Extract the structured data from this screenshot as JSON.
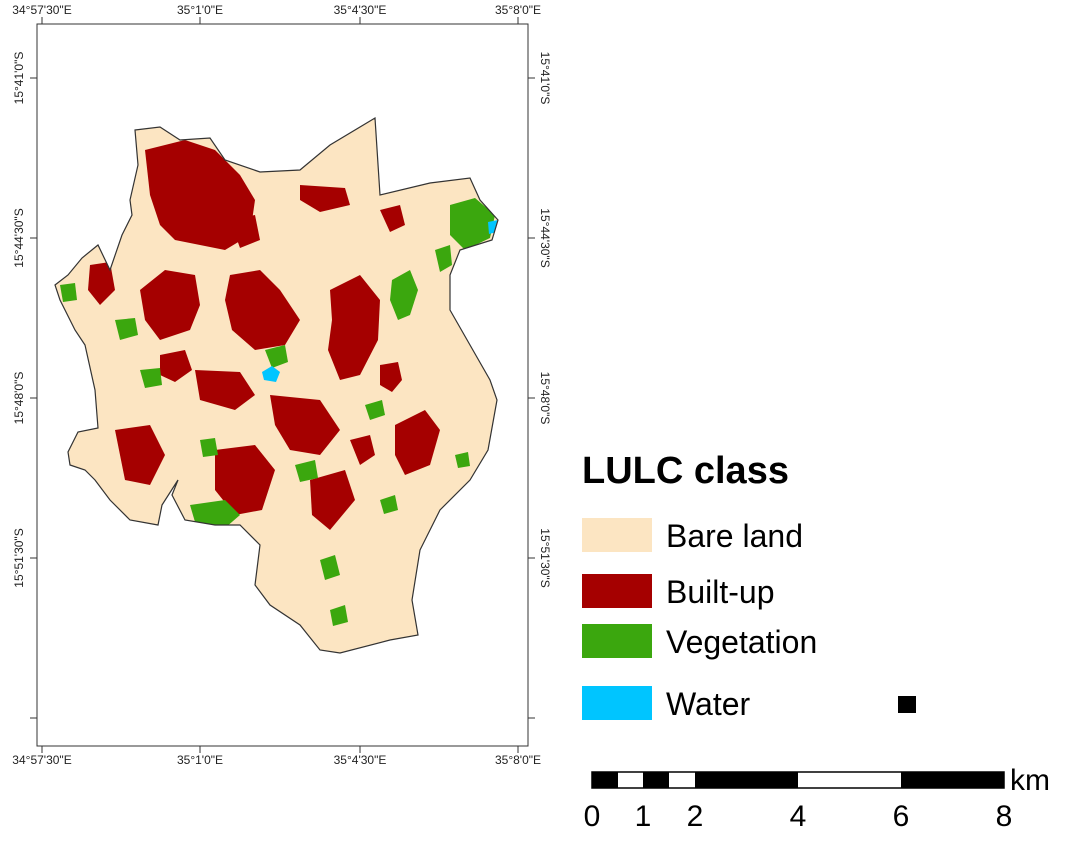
{
  "map": {
    "top_labels": [
      "34°57'30\"E",
      "35°1'0\"E",
      "35°4'30\"E",
      "35°8'0\"E"
    ],
    "bottom_labels": [
      "34°57'30\"E",
      "35°1'0\"E",
      "35°4'30\"E",
      "35°8'0\"E"
    ],
    "left_labels": [
      "15°41'0\"S",
      "15°44'30\"S",
      "15°48'0\"S",
      "15°51'30\"S"
    ],
    "right_labels": [
      "15°41'0\"S",
      "15°44'30\"S",
      "15°48'0\"S",
      "15°51'30\"S"
    ]
  },
  "legend": {
    "title": "LULC class",
    "items": [
      {
        "label": "Bare land",
        "color": "#fce5c2"
      },
      {
        "label": "Built-up",
        "color": "#a50000"
      },
      {
        "label": "Vegetation",
        "color": "#3ba70e"
      },
      {
        "label": "Water",
        "color": "#00c5ff"
      }
    ]
  },
  "scale": {
    "unit": "km",
    "labels": [
      "0",
      "1",
      "2",
      "4",
      "6",
      "8"
    ]
  }
}
